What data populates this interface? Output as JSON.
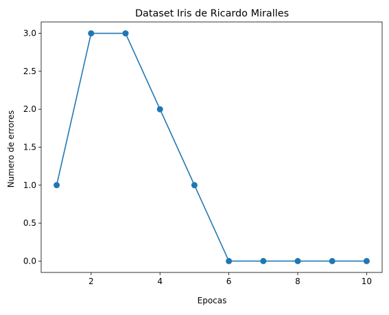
{
  "chart_data": {
    "type": "line",
    "title": "Dataset Iris de Ricardo Miralles",
    "xlabel": "Epocas",
    "ylabel": "Numero de errores",
    "x": [
      1,
      2,
      3,
      4,
      5,
      6,
      7,
      8,
      9,
      10
    ],
    "series": [
      {
        "values": [
          1,
          3,
          3,
          2,
          1,
          0,
          0,
          0,
          0,
          0
        ],
        "color": "#1f77b4",
        "marker": "circle"
      }
    ],
    "xlim": [
      0.55,
      10.45
    ],
    "ylim": [
      -0.15,
      3.15
    ],
    "xticks": [
      2,
      4,
      6,
      8,
      10
    ],
    "xtick_labels": [
      "2",
      "4",
      "6",
      "8",
      "10"
    ],
    "yticks": [
      0,
      0.5,
      1,
      1.5,
      2,
      2.5,
      3
    ],
    "ytick_labels": [
      "0.0",
      "0.5",
      "1.0",
      "1.5",
      "2.0",
      "2.5",
      "3.0"
    ],
    "grid": false,
    "legend": false
  }
}
